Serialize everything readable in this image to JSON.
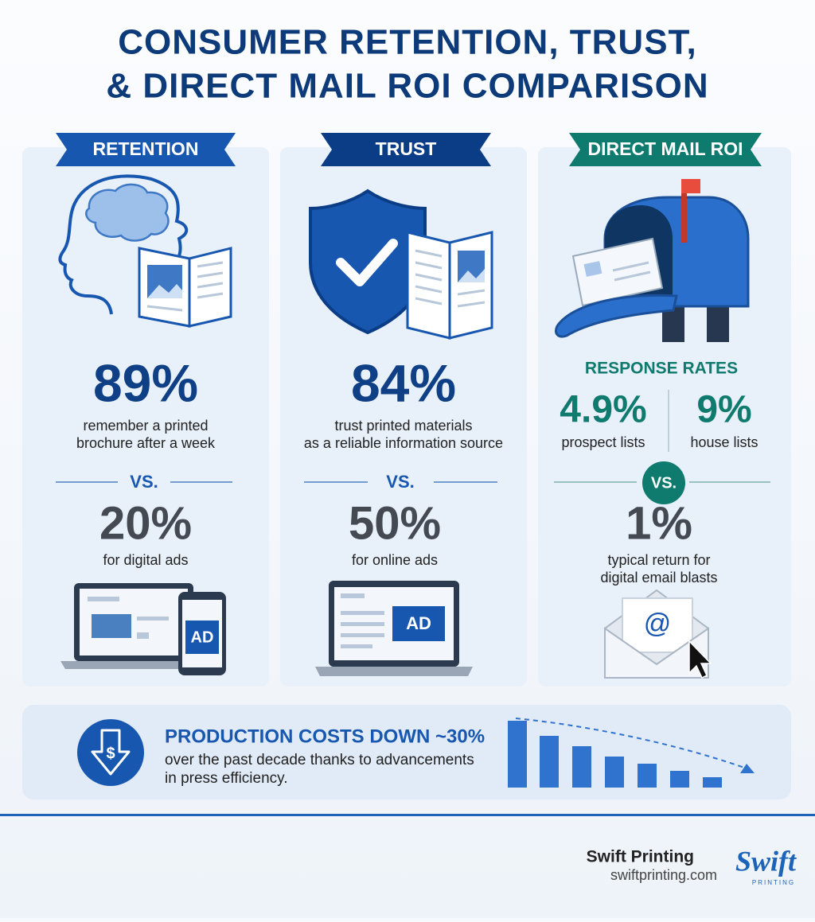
{
  "header": {
    "title_lines": [
      "CONSUMER RETENTION, TRUST,",
      "& DIRECT MAIL ROI COMPARISON"
    ]
  },
  "panels": [
    {
      "label": "RETENTION",
      "stat": "89%",
      "stat_text_lines": [
        "remember a printed",
        "brochure after a week"
      ],
      "vs": "VS.",
      "compare_stat": "20%",
      "compare_text_lines": [
        "for digital ads"
      ],
      "ad_labels": [
        "AD"
      ]
    },
    {
      "label": "TRUST",
      "stat": "84%",
      "stat_text_lines": [
        "trust printed materials",
        "as a reliable information source"
      ],
      "vs": "VS.",
      "compare_stat": "50%",
      "compare_text_lines": [
        "for online ads"
      ],
      "ad_labels": [
        "AD"
      ]
    },
    {
      "label": "DIRECT MAIL ROI",
      "subheading": "RESPONSE RATES",
      "rates": [
        {
          "stat": "4.9%",
          "text": "prospect lists"
        },
        {
          "stat": "9%",
          "text": "house lists"
        }
      ],
      "vs": "VS.",
      "compare_stat": "1%",
      "compare_text_lines": [
        "typical return for",
        "digital email blasts"
      ],
      "email_symbol": "@"
    }
  ],
  "banner": {
    "heading": "PRODUCTION COSTS DOWN ~30%",
    "text_lines": [
      "over the past decade thanks to advancements",
      "in press efficiency."
    ],
    "icon_symbol": "$"
  },
  "brand": {
    "name": "Swift Printing",
    "url": "swiftprinting.com",
    "logo_word": "Swift",
    "logo_sub": "PRINTING"
  }
}
